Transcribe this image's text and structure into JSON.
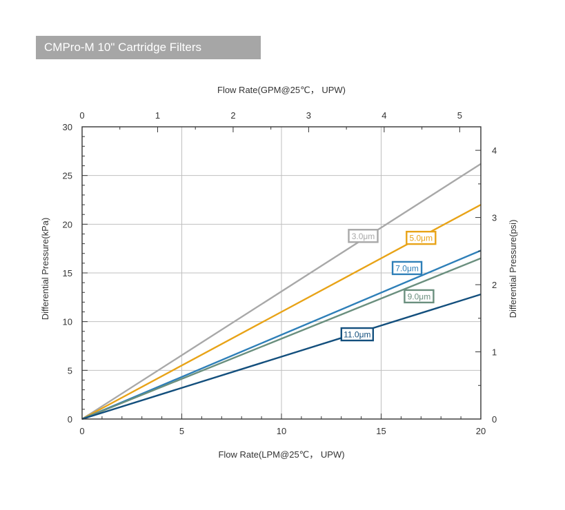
{
  "header": {
    "title": "CMPro-M 10\" Cartridge Filters"
  },
  "chart_data": {
    "type": "line",
    "xlabel": "Flow Rate(LPM@25℃， UPW)",
    "x2label": "Flow Rate(GPM@25℃， UPW)",
    "ylabel": "Differential Pressure(kPa)",
    "y2label": "Differential Pressure(psi)",
    "xlim": [
      0,
      20
    ],
    "ylim": [
      0,
      30
    ],
    "x2lim": [
      0,
      5.28
    ],
    "y2lim": [
      0,
      4.35
    ],
    "x_ticks": [
      0,
      5,
      10,
      15,
      20
    ],
    "y_ticks": [
      0,
      5,
      10,
      15,
      20,
      25,
      30
    ],
    "x2_ticks": [
      0,
      1,
      2,
      3,
      4,
      5
    ],
    "y2_ticks": [
      0,
      1,
      2,
      3,
      4
    ],
    "grid": true,
    "series": [
      {
        "name": "3.0μm",
        "x": [
          0,
          20
        ],
        "y": [
          0,
          26.2
        ],
        "color": "#a8a8a8",
        "label_at": [
          14.1,
          18.8
        ]
      },
      {
        "name": "5.0μm",
        "x": [
          0,
          20
        ],
        "y": [
          0,
          22.0
        ],
        "color": "#e8a317",
        "label_at": [
          17.0,
          18.6
        ]
      },
      {
        "name": "7.0μm",
        "x": [
          0,
          20
        ],
        "y": [
          0,
          17.3
        ],
        "color": "#2e7fb8",
        "label_at": [
          16.3,
          15.5
        ]
      },
      {
        "name": "9.0μm",
        "x": [
          0,
          20
        ],
        "y": [
          0,
          16.5
        ],
        "color": "#6a8f7e",
        "label_at": [
          16.9,
          12.6
        ]
      },
      {
        "name": "11.0μm",
        "x": [
          0,
          20
        ],
        "y": [
          0,
          12.8
        ],
        "color": "#134f7d",
        "label_at": [
          13.8,
          8.7
        ]
      }
    ]
  }
}
